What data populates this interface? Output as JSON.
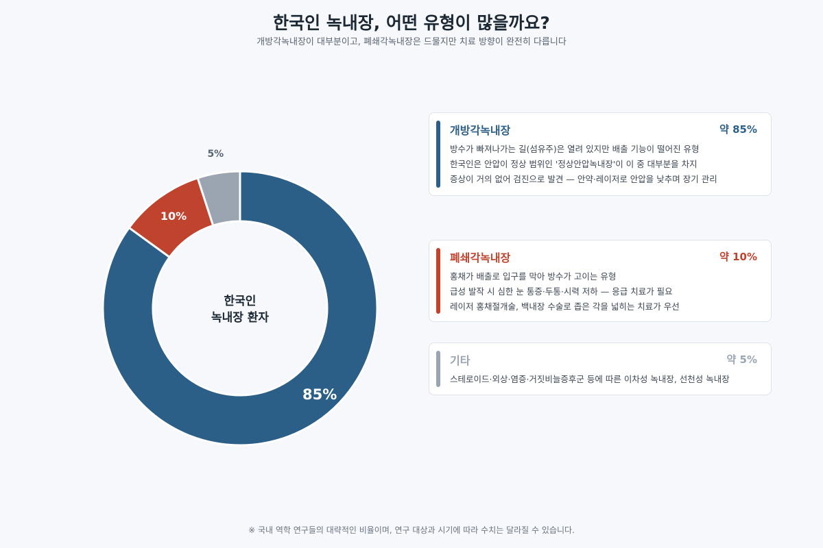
{
  "header": {
    "title": "한국인 녹내장, 어떤 유형이 많을까요?",
    "subtitle": "개방각녹내장이 대부분이고, 폐쇄각녹내장은 드물지만 치료 방향이 완전히 다릅니다"
  },
  "chart_data": {
    "type": "pie",
    "variant": "donut",
    "center_label": [
      "한국인",
      "녹내장 환자"
    ],
    "slices": [
      {
        "label": "개방각녹내장",
        "value": 85,
        "display": "85%",
        "color": "#2c5f87"
      },
      {
        "label": "폐쇄각녹내장",
        "value": 10,
        "display": "10%",
        "color": "#c0432e"
      },
      {
        "label": "기타",
        "value": 5,
        "display": "5%",
        "color": "#9aa5b1"
      }
    ],
    "legend_placement": "right"
  },
  "cards": [
    {
      "name": "개방각녹내장",
      "pct": "약 85%",
      "color": "#2c5f87",
      "lines": [
        "방수가 빠져나가는 길(섬유주)은 열려 있지만 배출 기능이 떨어진 유형",
        "한국인은 안압이 정상 범위인 '정상안압녹내장'이 이 중 대부분을 차지",
        "증상이 거의 없어 검진으로 발견 — 안약·레이저로 안압을 낮추며 장기 관리"
      ]
    },
    {
      "name": "폐쇄각녹내장",
      "pct": "약 10%",
      "color": "#c0432e",
      "lines": [
        "홍채가 배출로 입구를 막아 방수가 고이는 유형",
        "급성 발작 시 심한 눈 통증·두통·시력 저하 — 응급 치료가 필요",
        "레이저 홍채절개술, 백내장 수술로 좁은 각을 넓히는 치료가 우선"
      ]
    },
    {
      "name": "기타",
      "pct": "약 5%",
      "color": "#9aa5b1",
      "lines": [
        "스테로이드·외상·염증·거짓비늘증후군 등에 따른 이차성 녹내장, 선천성 녹내장"
      ]
    }
  ],
  "footnote": "※ 국내 역학 연구들의 대략적인 비율이며, 연구 대상과 시기에 따라 수치는 달라질 수 있습니다."
}
